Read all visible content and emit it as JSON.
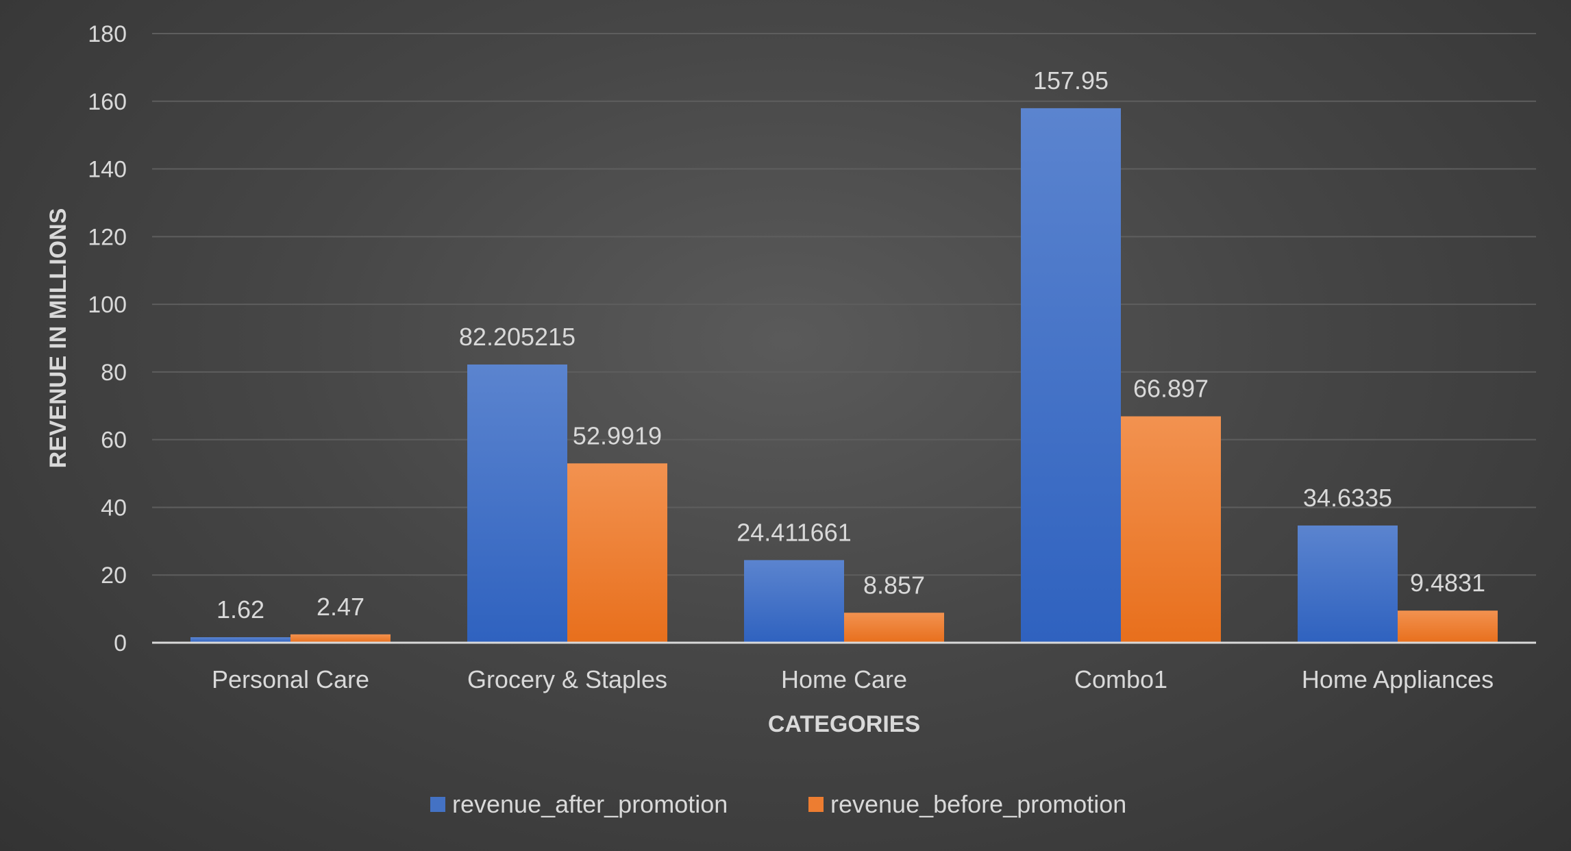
{
  "chart_data": {
    "type": "bar",
    "title": "",
    "xlabel": "CATEGORIES",
    "ylabel": "REVENUE IN MILLIONS",
    "ylim": [
      0,
      180
    ],
    "y_ticks": [
      "0",
      "20",
      "40",
      "60",
      "80",
      "100",
      "120",
      "140",
      "160",
      "180"
    ],
    "grid": true,
    "legend_position": "bottom",
    "categories": [
      "Personal Care",
      "Grocery & Staples",
      "Home Care",
      "Combo1",
      "Home Appliances"
    ],
    "series": [
      {
        "name": "revenue_after_promotion",
        "color": "#4472c4",
        "values": [
          1.62,
          82.205215,
          24.411661,
          157.95,
          34.6335
        ],
        "labels": [
          "1.62",
          "82.205215",
          "24.411661",
          "157.95",
          "34.6335"
        ]
      },
      {
        "name": "revenue_before_promotion",
        "color": "#ed7d31",
        "values": [
          2.47,
          52.9919,
          8.857,
          66.897,
          9.4831
        ],
        "labels": [
          "2.47",
          "52.9919",
          "8.857",
          "66.897",
          "9.4831"
        ]
      }
    ]
  }
}
